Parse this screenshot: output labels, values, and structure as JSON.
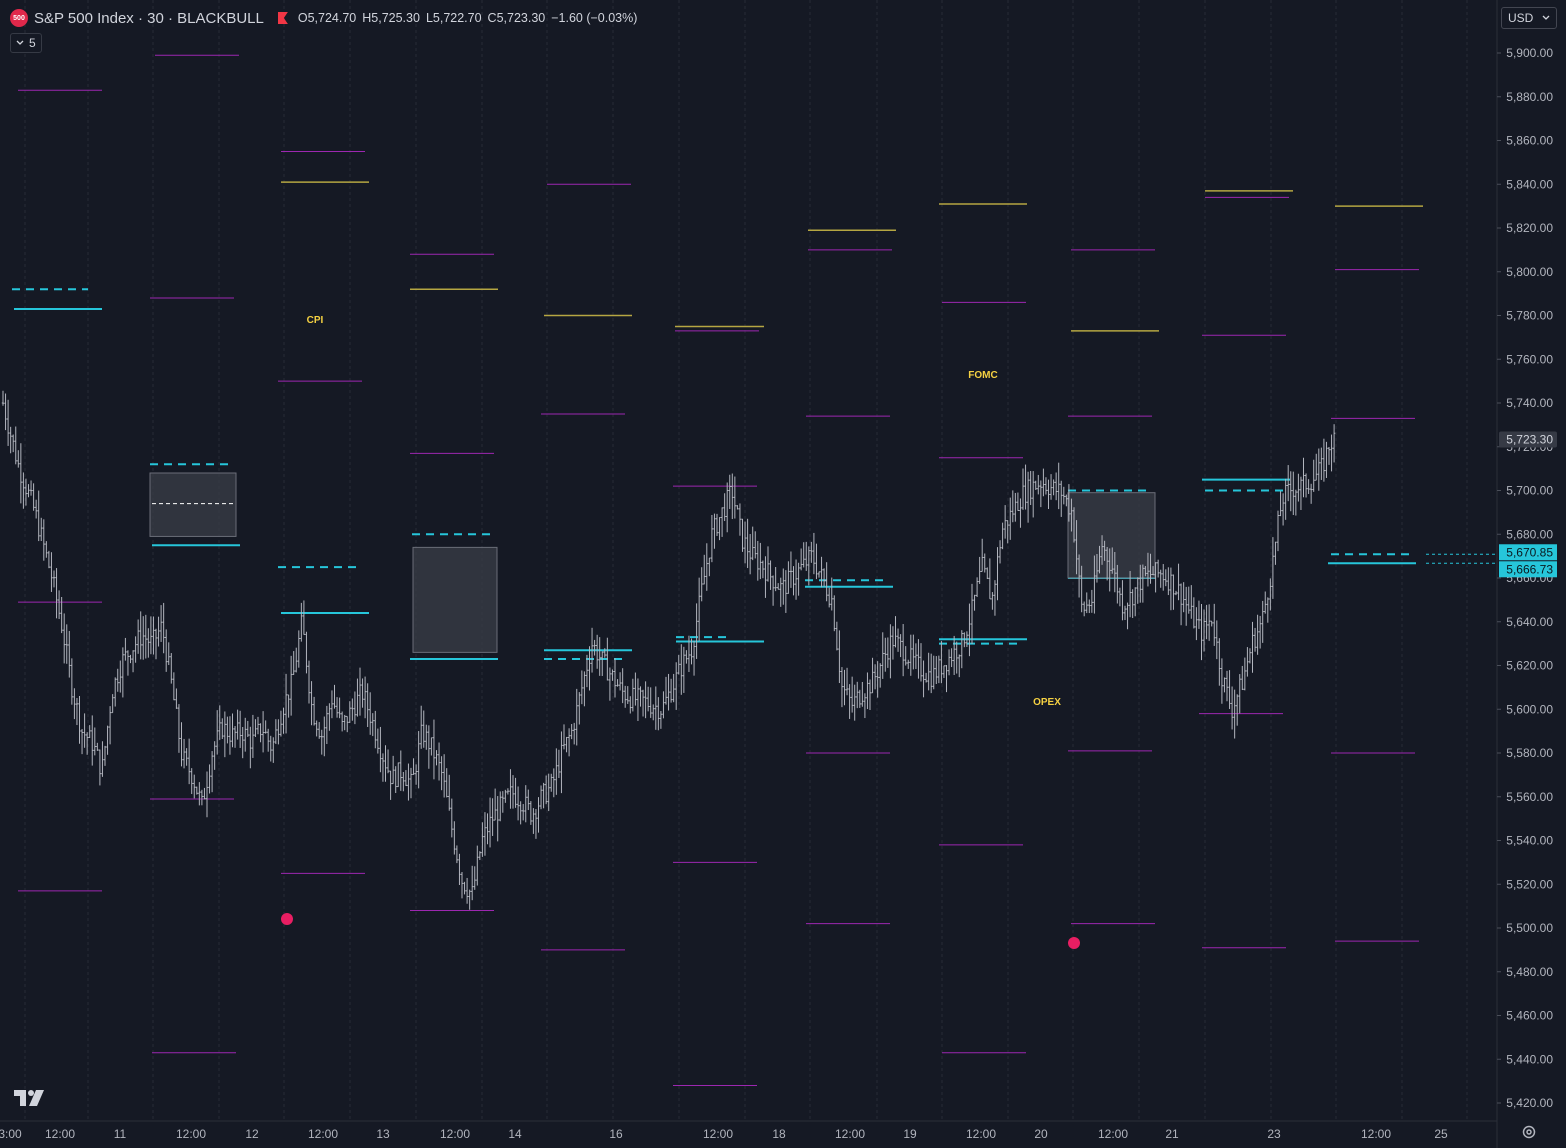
{
  "symbol": {
    "badge": "500",
    "title": "S&P 500 Index · 30 · BLACKBULL",
    "open": "O5,724.70",
    "high": "H5,725.30",
    "low": "L5,722.70",
    "close": "C5,723.30",
    "change": "−1.60 (−0.03%)"
  },
  "indicator_toggle": {
    "count": "5",
    "icon": "chevron-down-icon"
  },
  "currency_select": {
    "value": "USD",
    "icon": "chevron-down-icon"
  },
  "price_scale": {
    "ticks": [
      "5,900.00",
      "5,880.00",
      "5,860.00",
      "5,840.00",
      "5,820.00",
      "5,800.00",
      "5,780.00",
      "5,760.00",
      "5,740.00",
      "5,720.00",
      "5,700.00",
      "5,680.00",
      "5,660.00",
      "5,640.00",
      "5,620.00",
      "5,600.00",
      "5,580.00",
      "5,560.00",
      "5,540.00",
      "5,520.00",
      "5,500.00",
      "5,480.00",
      "5,460.00",
      "5,440.00",
      "5,420.00"
    ],
    "last_price_label": "5,723.30",
    "level_labels": [
      "5,670.85",
      "5,666.73"
    ]
  },
  "time_axis": {
    "ticks": [
      "3:00",
      "12:00",
      "11",
      "12:00",
      "12",
      "12:00",
      "13",
      "12:00",
      "14",
      "16",
      "12:00",
      "18",
      "12:00",
      "19",
      "12:00",
      "20",
      "12:00",
      "21",
      "23",
      "12:00",
      "25"
    ]
  },
  "annotations": {
    "cpi": "CPI",
    "fomc": "FOMC",
    "opex": "OPEX"
  },
  "colors": {
    "background": "#151924",
    "candle": "#b2b5be",
    "purple_level": "#9c27b0",
    "gold_level": "#b5a642",
    "cyan_level": "#26c6da",
    "event_text": "#f5d142",
    "event_dot": "#e91e63"
  },
  "chart_data": {
    "type": "ohlc",
    "title": "S&P 500 Index · 30 · BLACKBULL",
    "ylim": [
      5412,
      5912
    ],
    "last_price": 5723.3,
    "close_path": [
      [
        3,
        5740
      ],
      [
        18,
        5712
      ],
      [
        35,
        5690
      ],
      [
        52,
        5660
      ],
      [
        62,
        5638
      ],
      [
        72,
        5610
      ],
      [
        82,
        5590
      ],
      [
        92,
        5585
      ],
      [
        102,
        5572
      ],
      [
        112,
        5608
      ],
      [
        122,
        5622
      ],
      [
        132,
        5628
      ],
      [
        142,
        5634
      ],
      [
        152,
        5630
      ],
      [
        162,
        5638
      ],
      [
        172,
        5610
      ],
      [
        182,
        5578
      ],
      [
        192,
        5570
      ],
      [
        202,
        5556
      ],
      [
        212,
        5580
      ],
      [
        222,
        5592
      ],
      [
        232,
        5588
      ],
      [
        242,
        5590
      ],
      [
        252,
        5585
      ],
      [
        262,
        5592
      ],
      [
        272,
        5582
      ],
      [
        282,
        5600
      ],
      [
        292,
        5612
      ],
      [
        302,
        5640
      ],
      [
        312,
        5600
      ],
      [
        322,
        5588
      ],
      [
        332,
        5605
      ],
      [
        342,
        5592
      ],
      [
        352,
        5600
      ],
      [
        362,
        5608
      ],
      [
        372,
        5595
      ],
      [
        382,
        5580
      ],
      [
        392,
        5568
      ],
      [
        402,
        5572
      ],
      [
        412,
        5565
      ],
      [
        422,
        5590
      ],
      [
        432,
        5582
      ],
      [
        442,
        5570
      ],
      [
        452,
        5545
      ],
      [
        462,
        5522
      ],
      [
        472,
        5515
      ],
      [
        482,
        5540
      ],
      [
        492,
        5550
      ],
      [
        502,
        5556
      ],
      [
        512,
        5562
      ],
      [
        522,
        5558
      ],
      [
        532,
        5552
      ],
      [
        542,
        5560
      ],
      [
        552,
        5565
      ],
      [
        562,
        5580
      ],
      [
        572,
        5590
      ],
      [
        582,
        5610
      ],
      [
        592,
        5630
      ],
      [
        602,
        5622
      ],
      [
        612,
        5615
      ],
      [
        622,
        5608
      ],
      [
        632,
        5605
      ],
      [
        642,
        5604
      ],
      [
        652,
        5602
      ],
      [
        662,
        5600
      ],
      [
        672,
        5610
      ],
      [
        682,
        5620
      ],
      [
        692,
        5628
      ],
      [
        702,
        5655
      ],
      [
        712,
        5680
      ],
      [
        722,
        5690
      ],
      [
        732,
        5700
      ],
      [
        742,
        5678
      ],
      [
        752,
        5670
      ],
      [
        762,
        5666
      ],
      [
        772,
        5660
      ],
      [
        782,
        5655
      ],
      [
        792,
        5660
      ],
      [
        802,
        5665
      ],
      [
        812,
        5670
      ],
      [
        822,
        5660
      ],
      [
        832,
        5650
      ],
      [
        842,
        5610
      ],
      [
        852,
        5602
      ],
      [
        862,
        5608
      ],
      [
        872,
        5612
      ],
      [
        882,
        5622
      ],
      [
        892,
        5632
      ],
      [
        902,
        5628
      ],
      [
        912,
        5622
      ],
      [
        922,
        5618
      ],
      [
        932,
        5615
      ],
      [
        942,
        5620
      ],
      [
        952,
        5625
      ],
      [
        962,
        5630
      ],
      [
        972,
        5645
      ],
      [
        982,
        5665
      ],
      [
        992,
        5650
      ],
      [
        1002,
        5682
      ],
      [
        1012,
        5690
      ],
      [
        1022,
        5698
      ],
      [
        1032,
        5702
      ],
      [
        1042,
        5704
      ],
      [
        1052,
        5701
      ],
      [
        1062,
        5699
      ],
      [
        1072,
        5690
      ],
      [
        1082,
        5645
      ],
      [
        1092,
        5650
      ],
      [
        1102,
        5675
      ],
      [
        1112,
        5665
      ],
      [
        1122,
        5648
      ],
      [
        1132,
        5652
      ],
      [
        1142,
        5660
      ],
      [
        1152,
        5662
      ],
      [
        1162,
        5662
      ],
      [
        1172,
        5658
      ],
      [
        1182,
        5652
      ],
      [
        1192,
        5642
      ],
      [
        1202,
        5635
      ],
      [
        1212,
        5642
      ],
      [
        1222,
        5615
      ],
      [
        1232,
        5600
      ],
      [
        1242,
        5612
      ],
      [
        1252,
        5630
      ],
      [
        1262,
        5640
      ],
      [
        1272,
        5665
      ],
      [
        1282,
        5696
      ],
      [
        1292,
        5701
      ],
      [
        1302,
        5702
      ],
      [
        1312,
        5705
      ],
      [
        1322,
        5710
      ],
      [
        1330,
        5722
      ],
      [
        1336,
        5723.3
      ]
    ]
  }
}
